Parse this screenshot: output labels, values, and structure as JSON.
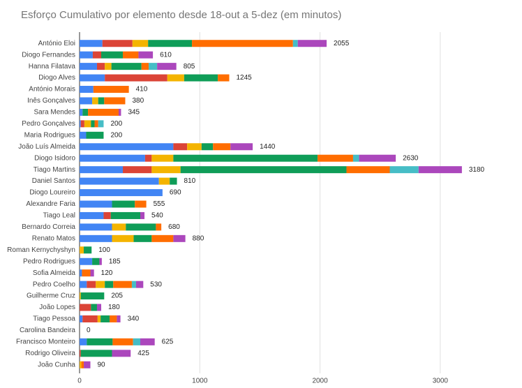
{
  "chart_data": {
    "type": "stacked-bar-horizontal",
    "title": "Esforço Cumulativo por elemento desde 18-out a 5-dez (em minutos)",
    "categories": [
      "António Eloi",
      "Diogo Fernandes",
      "Hanna Filatava",
      "Diogo Alves",
      "António Morais",
      "Inês Gonçalves",
      "Sara Mendes",
      "Pedro Gonçalves",
      "Maria Rodrigues",
      "João Luís Almeida",
      "Diogo Isidoro",
      "Tiago Martins",
      "Daniel Santos",
      "Diogo Loureiro",
      "Alexandre Faria",
      "Tiago Leal",
      "Bernardo Correia",
      "Renato Matos",
      "Roman Kernychyshyn",
      "Pedro Rodrigues",
      "Sofia Almeida",
      "Pedro Coelho",
      "Guilherme Cruz",
      "João Lopes",
      "Tiago Pessoa",
      "Carolina Bandeira",
      "Francisco Monteiro",
      "Rodrigo Oliveira",
      "João Cunha"
    ],
    "series": [
      {
        "color": "#4285f4",
        "values": [
          190,
          110,
          145,
          210,
          115,
          105,
          25,
          10,
          55,
          780,
          545,
          360,
          660,
          690,
          270,
          200,
          270,
          270,
          0,
          105,
          20,
          60,
          0,
          0,
          25,
          0,
          60,
          0,
          0
        ]
      },
      {
        "color": "#db4437",
        "values": [
          250,
          70,
          65,
          520,
          0,
          0,
          0,
          30,
          0,
          115,
          55,
          240,
          0,
          0,
          0,
          60,
          0,
          0,
          0,
          0,
          0,
          75,
          0,
          95,
          125,
          0,
          0,
          10,
          0
        ]
      },
      {
        "color": "#f4b400",
        "values": [
          130,
          0,
          55,
          140,
          0,
          50,
          0,
          55,
          0,
          120,
          180,
          240,
          90,
          0,
          0,
          0,
          115,
          180,
          35,
          0,
          0,
          75,
          10,
          0,
          25,
          0,
          0,
          0,
          15
        ]
      },
      {
        "color": "#0f9d58",
        "values": [
          365,
          180,
          250,
          280,
          0,
          50,
          45,
          30,
          145,
          95,
          1200,
          1380,
          60,
          0,
          190,
          245,
          250,
          150,
          65,
          60,
          0,
          70,
          195,
          50,
          75,
          0,
          215,
          260,
          0
        ]
      },
      {
        "color": "#ff6d00",
        "values": [
          840,
          130,
          60,
          95,
          295,
          175,
          255,
          30,
          0,
          145,
          295,
          360,
          0,
          0,
          95,
          0,
          45,
          180,
          0,
          0,
          70,
          155,
          0,
          0,
          60,
          0,
          170,
          0,
          20
        ]
      },
      {
        "color": "#46bdc6",
        "values": [
          40,
          0,
          70,
          0,
          0,
          0,
          0,
          45,
          0,
          0,
          50,
          240,
          0,
          0,
          0,
          0,
          0,
          0,
          0,
          0,
          0,
          35,
          0,
          0,
          0,
          0,
          60,
          0,
          0
        ]
      },
      {
        "color": "#ab47bc",
        "values": [
          240,
          120,
          160,
          0,
          0,
          0,
          20,
          0,
          0,
          185,
          305,
          360,
          0,
          0,
          0,
          35,
          0,
          100,
          0,
          20,
          30,
          60,
          0,
          35,
          30,
          0,
          120,
          155,
          55
        ]
      }
    ],
    "totals": [
      2055,
      610,
      805,
      1245,
      410,
      380,
      345,
      200,
      200,
      1440,
      2630,
      3180,
      810,
      690,
      555,
      540,
      680,
      880,
      100,
      185,
      120,
      530,
      205,
      180,
      340,
      0,
      625,
      425,
      90
    ],
    "xlim": [
      0,
      3500
    ],
    "xticks": [
      0,
      1000,
      2000,
      3000
    ],
    "grid": true
  }
}
